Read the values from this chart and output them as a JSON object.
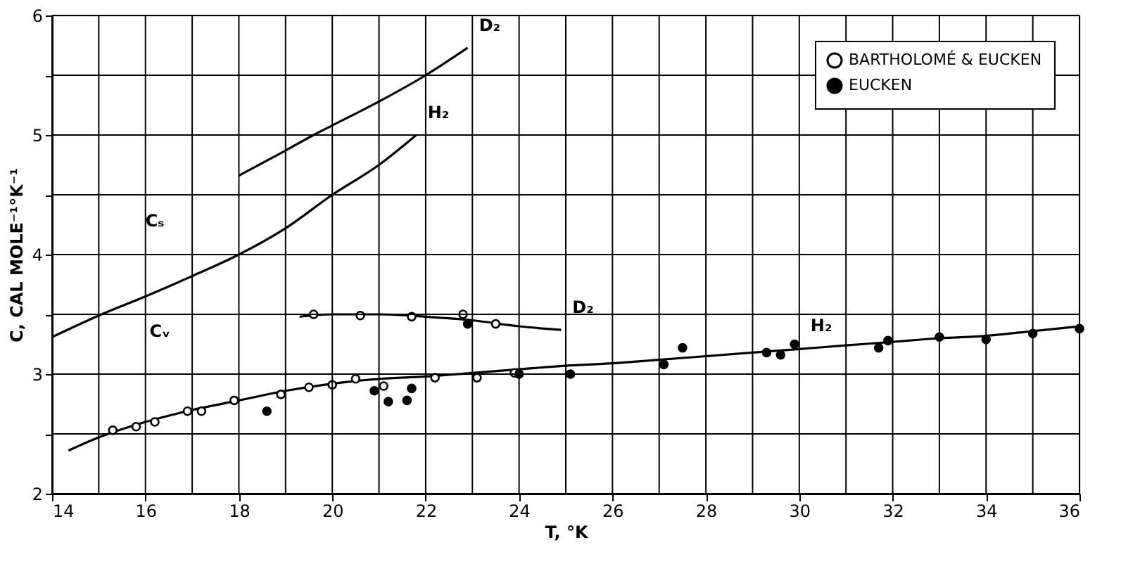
{
  "chart_data": {
    "type": "line",
    "xlabel": "T, °K",
    "ylabel": "C, CAL MOLE⁻¹°K⁻¹",
    "xlim": [
      14,
      36
    ],
    "ylim": [
      2,
      6
    ],
    "xticks": [
      14,
      {
        "value": 15,
        "label": null
      },
      16,
      {
        "value": 17,
        "label": null
      },
      18,
      {
        "value": 19,
        "label": null
      },
      20,
      {
        "value": 21,
        "label": null
      },
      22,
      {
        "value": 23,
        "label": null
      },
      24,
      {
        "value": 25,
        "label": null
      },
      26,
      {
        "value": 27,
        "label": null
      },
      28,
      {
        "value": 29,
        "label": null
      },
      30,
      {
        "value": 31,
        "label": null
      },
      32,
      {
        "value": 33,
        "label": null
      },
      34,
      {
        "value": 35,
        "label": null
      },
      36
    ],
    "yticks": [
      2,
      {
        "value": 2.5,
        "label": null
      },
      3,
      {
        "value": 3.5,
        "label": null
      },
      4,
      {
        "value": 4.5,
        "label": null
      },
      5,
      {
        "value": 5.5,
        "label": null
      },
      6
    ],
    "grid": true,
    "legend": "top right",
    "line_style": "solid",
    "series": [
      {
        "color": "#000000",
        "x": [
          18,
          19,
          19.6,
          20,
          21,
          22,
          22.9
        ],
        "values": [
          4.66,
          4.87,
          5.0,
          5.08,
          5.28,
          5.5,
          5.73
        ]
      },
      {
        "color": "#000000",
        "x": [
          14,
          15,
          16,
          17,
          18,
          19,
          20,
          21,
          21.8
        ],
        "values": [
          3.31,
          3.49,
          3.65,
          3.82,
          4.0,
          4.22,
          4.5,
          4.75,
          5.0
        ]
      },
      {
        "color": "#000000",
        "x": [
          19.3,
          20,
          21,
          22,
          23,
          24,
          24.9
        ],
        "values": [
          3.48,
          3.5,
          3.5,
          3.48,
          3.45,
          3.4,
          3.37
        ]
      },
      {
        "color": "#000000",
        "x": [
          14.35,
          15,
          16,
          17,
          18,
          19,
          20,
          21,
          22,
          23,
          24,
          25,
          26,
          27,
          28,
          29,
          30,
          31,
          32,
          33,
          34,
          35,
          36
        ],
        "values": [
          2.36,
          2.47,
          2.6,
          2.7,
          2.78,
          2.86,
          2.92,
          2.96,
          2.98,
          3.01,
          3.04,
          3.07,
          3.09,
          3.12,
          3.15,
          3.18,
          3.21,
          3.24,
          3.27,
          3.3,
          3.32,
          3.36,
          3.4
        ]
      },
      {
        "type": "scatter",
        "name": "BARTHOLOMÉ & EUCKEN",
        "color": "#ffffff",
        "marker": "circle",
        "x": [
          19.6,
          20.6,
          21.7,
          22.8,
          23.5,
          15.3,
          15.8,
          16.2,
          16.9,
          17.2,
          17.9,
          18.9,
          19.5,
          20.0,
          20.5,
          21.1,
          22.2,
          23.1,
          23.9
        ],
        "values": [
          3.5,
          3.49,
          3.48,
          3.5,
          3.42,
          2.53,
          2.56,
          2.6,
          2.69,
          2.69,
          2.78,
          2.83,
          2.89,
          2.91,
          2.96,
          2.9,
          2.97,
          2.97,
          3.01
        ]
      },
      {
        "type": "scatter",
        "name": "EUCKEN",
        "color": "#000000",
        "marker": "circle",
        "x": [
          22.9,
          18.6,
          20.9,
          21.2,
          21.6,
          21.7,
          24.0,
          25.1,
          27.1,
          27.5,
          29.3,
          29.6,
          29.9,
          31.7,
          31.9,
          33.0,
          34.0,
          35.0,
          36.0
        ],
        "values": [
          3.42,
          2.69,
          2.86,
          2.77,
          2.78,
          2.88,
          3.0,
          3.0,
          3.08,
          3.22,
          3.18,
          3.16,
          3.25,
          3.22,
          3.28,
          3.31,
          3.29,
          3.34,
          3.38
        ]
      }
    ],
    "annotations": [
      {
        "text": "D₂",
        "x": 22.9,
        "y": 5.73
      },
      {
        "text": "H₂",
        "x": 21.8,
        "y": 5.0
      },
      "Cₛ",
      "Cᵥ",
      {
        "text": "D₂",
        "x": 24.9,
        "y": 3.37
      },
      {
        "text": "H₂",
        "x": 30.0,
        "y": 3.22
      }
    ]
  }
}
